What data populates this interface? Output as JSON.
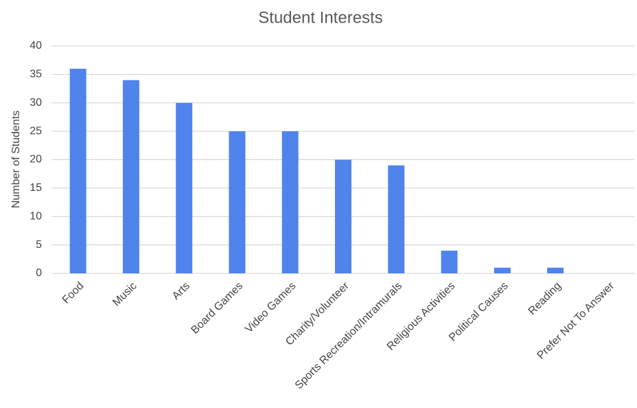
{
  "chart_data": {
    "type": "bar",
    "title": "Student Interests",
    "y_label": "Number of Students",
    "categories": [
      "Food",
      "Music",
      "Arts",
      "Board Games",
      "Video Games",
      "Charity/Volunteer",
      "Sports Recreation/Intramurals",
      "Religious Activities",
      "Political Causes",
      "Reading",
      "Prefer Not To Answer"
    ],
    "values": [
      36,
      34,
      30,
      25,
      25,
      20,
      19,
      4,
      1,
      1,
      0
    ],
    "color": "#5084ec",
    "ylim": [
      0,
      40
    ],
    "yticks": [
      0,
      5,
      10,
      15,
      20,
      25,
      30,
      35,
      40
    ],
    "grid": true
  }
}
